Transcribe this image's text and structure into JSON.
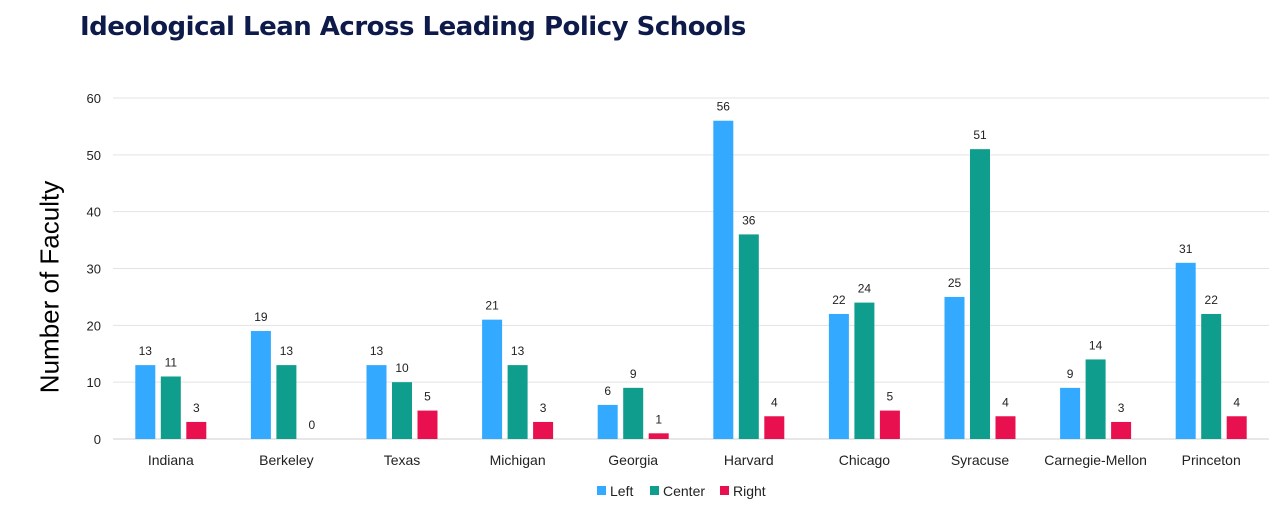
{
  "chart_data": {
    "type": "bar",
    "title": "Ideological Lean Across Leading Policy Schools",
    "ylabel": "Number of Faculty",
    "xlabel": "",
    "ylim": [
      0,
      60
    ],
    "yticks": [
      0,
      10,
      20,
      30,
      40,
      50,
      60
    ],
    "grid": true,
    "legend_position": "bottom",
    "categories": [
      "Indiana",
      "Berkeley",
      "Texas",
      "Michigan",
      "Georgia",
      "Harvard",
      "Chicago",
      "Syracuse",
      "Carnegie-Mellon",
      "Princeton"
    ],
    "series": [
      {
        "name": "Left",
        "color": "#33aaff",
        "values": [
          13,
          19,
          13,
          21,
          6,
          56,
          22,
          25,
          9,
          31
        ]
      },
      {
        "name": "Center",
        "color": "#0f9e8e",
        "values": [
          11,
          13,
          10,
          13,
          9,
          36,
          24,
          51,
          14,
          22
        ]
      },
      {
        "name": "Right",
        "color": "#e8104f",
        "values": [
          3,
          0,
          5,
          3,
          1,
          4,
          5,
          4,
          3,
          4
        ]
      }
    ]
  }
}
